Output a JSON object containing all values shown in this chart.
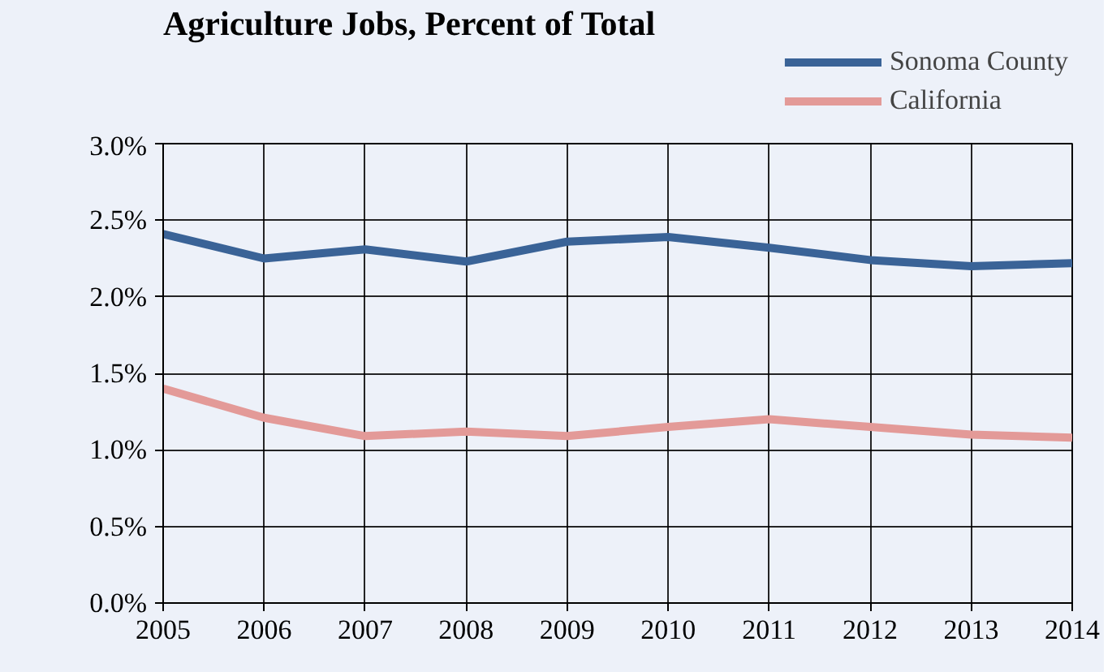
{
  "chart_data": {
    "type": "line",
    "title": "Agriculture Jobs, Percent of Total",
    "x": [
      2005,
      2006,
      2007,
      2008,
      2009,
      2010,
      2011,
      2012,
      2013,
      2014
    ],
    "series": [
      {
        "name": "Sonoma County",
        "color": "#3a6397",
        "values": [
          2.41,
          2.25,
          2.31,
          2.23,
          2.36,
          2.39,
          2.32,
          2.24,
          2.2,
          2.22
        ]
      },
      {
        "name": "California",
        "color": "#e39a98",
        "values": [
          1.4,
          1.21,
          1.09,
          1.12,
          1.09,
          1.15,
          1.2,
          1.15,
          1.1,
          1.08
        ]
      }
    ],
    "xlim": [
      2005,
      2014
    ],
    "xticks": [
      2005,
      2006,
      2007,
      2008,
      2009,
      2010,
      2011,
      2012,
      2013,
      2014
    ],
    "ylim": [
      0,
      3
    ],
    "yticks": [
      {
        "value": 0,
        "label": "0.0%"
      },
      {
        "value": 0.5,
        "label": "0.5%"
      },
      {
        "value": 1,
        "label": "1.0%"
      },
      {
        "value": 1.5,
        "label": "1.5%"
      },
      {
        "value": 2,
        "label": "2.0%"
      },
      {
        "value": 2.5,
        "label": "2.5%"
      },
      {
        "value": 3,
        "label": "3.0%"
      }
    ],
    "grid": true,
    "legend": "top right",
    "marker": "none",
    "line_style": "solid"
  }
}
